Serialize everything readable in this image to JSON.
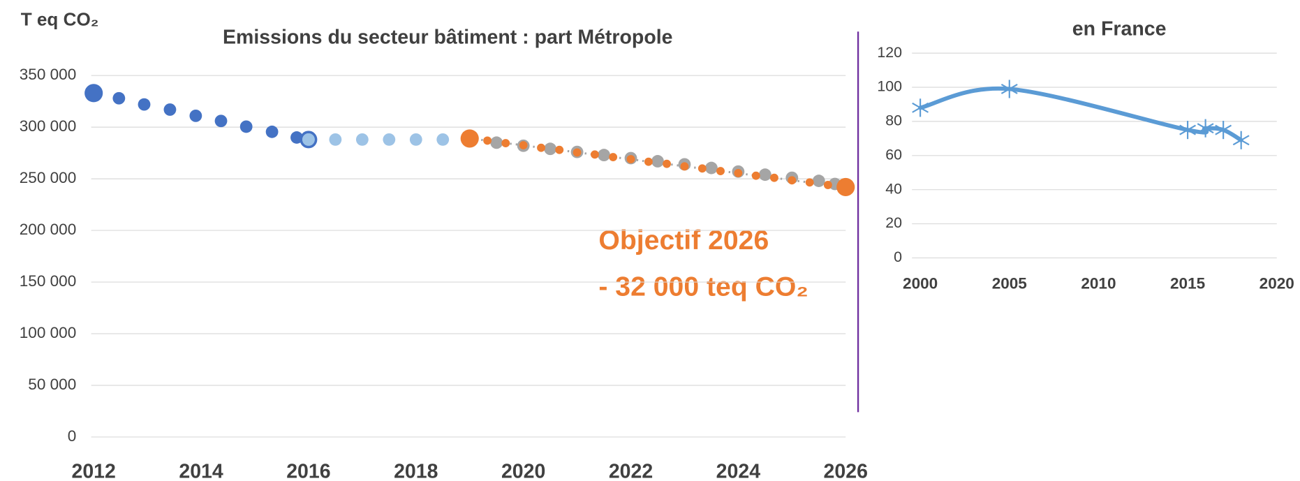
{
  "chart_data": [
    {
      "type": "scatter",
      "title": "Emissions du secteur bâtiment : part Métropole",
      "y_label": "T eq CO₂",
      "annotations": [
        "Objectif 2026",
        "- 32 000 teq CO₂"
      ],
      "xlim": [
        2012,
        2026
      ],
      "xticks": [
        2012,
        2014,
        2016,
        2018,
        2020,
        2022,
        2024,
        2026
      ],
      "ylim": [
        0,
        350000
      ],
      "yticks": [
        {
          "value": 0,
          "label": "0"
        },
        {
          "value": 50000,
          "label": "50 000"
        },
        {
          "value": 100000,
          "label": "100 000"
        },
        {
          "value": 150000,
          "label": "150 000"
        },
        {
          "value": 200000,
          "label": "200 000"
        },
        {
          "value": 250000,
          "label": "250 000"
        },
        {
          "value": 300000,
          "label": "300 000"
        },
        {
          "value": 350000,
          "label": "350 000"
        }
      ],
      "grid": true,
      "series": [
        {
          "color": "#4472c4",
          "x": [
            2012,
            2012.47,
            2012.94,
            2013.42,
            2013.9,
            2014.37,
            2014.84,
            2015.32,
            2015.78,
            2016
          ],
          "values": [
            333000,
            328000,
            322000,
            317000,
            311000,
            306000,
            300500,
            295500,
            290000,
            288000
          ]
        },
        {
          "color": "#9dc3e6",
          "x": [
            2016,
            2016.5,
            2017,
            2017.5,
            2018,
            2018.5,
            2019
          ],
          "values": [
            288000,
            288000,
            288000,
            288000,
            288000,
            288000,
            288000
          ]
        },
        {
          "color": "#a5a5a5",
          "x": [
            2019.5,
            2020,
            2020.5,
            2021,
            2021.5,
            2022,
            2022.5,
            2023,
            2023.5,
            2024,
            2024.5,
            2025,
            2025.5,
            2025.8
          ],
          "values": [
            285000,
            282000,
            279000,
            276000,
            273000,
            270000,
            267000,
            264000,
            260500,
            257000,
            254000,
            251000,
            248000,
            245000
          ]
        },
        {
          "color": "#ed7d31",
          "line": "dotted",
          "x": [
            2019,
            2019.33,
            2019.67,
            2020,
            2020.33,
            2020.67,
            2021,
            2021.33,
            2021.67,
            2022,
            2022.33,
            2022.67,
            2023,
            2023.33,
            2023.67,
            2024,
            2024.33,
            2024.67,
            2025,
            2025.33,
            2025.67,
            2026
          ],
          "values": [
            289000,
            287000,
            284500,
            282500,
            280000,
            278000,
            275500,
            273500,
            271000,
            269000,
            266500,
            264500,
            262000,
            260000,
            257500,
            255500,
            253000,
            251000,
            248500,
            246500,
            244000,
            242000
          ]
        }
      ]
    },
    {
      "type": "line",
      "title": "en France",
      "smooth": true,
      "marker": "asterisk",
      "color": "#5b9bd5",
      "xlim": [
        2000,
        2020
      ],
      "xticks": [
        2000,
        2005,
        2010,
        2015,
        2020
      ],
      "ylim": [
        0,
        120
      ],
      "yticks": [
        0,
        20,
        40,
        60,
        80,
        100,
        120
      ],
      "grid": true,
      "x": [
        2000,
        2005,
        2015,
        2016,
        2017,
        2018
      ],
      "values": [
        88,
        99,
        75,
        76,
        75,
        69
      ]
    }
  ]
}
